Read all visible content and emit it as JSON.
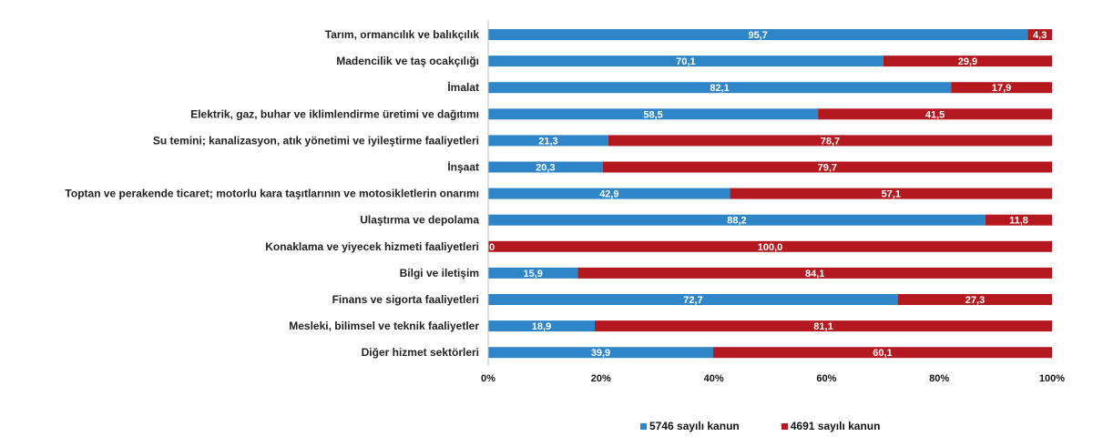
{
  "chart_data": {
    "type": "bar",
    "orientation": "horizontal",
    "stacked": true,
    "categories": [
      "Tarım, ormancılık ve balıkçılık",
      "Madencilik ve taş ocakçılığı",
      "İmalat",
      "Elektrik, gaz, buhar ve iklimlendirme üretimi ve dağıtımı",
      "Su temini; kanalizasyon, atık yönetimi ve iyileştirme faaliyetleri",
      "İnşaat",
      "Toptan ve perakende ticaret; motorlu kara taşıtlarının ve motosikletlerin onarımı",
      "Ulaştırma ve depolama",
      "Konaklama ve yiyecek hizmeti faaliyetleri",
      "Bilgi ve iletişim",
      "Finans ve sigorta faaliyetleri",
      "Mesleki, bilimsel ve teknik faaliyetler",
      "Diğer hizmet sektörleri"
    ],
    "series": [
      {
        "name": "5746 sayılı kanun",
        "color": "#2e86c8",
        "values": [
          95.7,
          70.1,
          82.1,
          58.5,
          21.3,
          20.3,
          42.9,
          88.2,
          0,
          15.9,
          72.7,
          18.9,
          39.9
        ],
        "labels": [
          "95,7",
          "70,1",
          "82,1",
          "58,5",
          "21,3",
          "20,3",
          "42,9",
          "88,2",
          "0",
          "15,9",
          "72,7",
          "18,9",
          "39,9"
        ]
      },
      {
        "name": "4691 sayılı kanun",
        "color": "#b3191f",
        "values": [
          4.3,
          29.9,
          17.9,
          41.5,
          78.7,
          79.7,
          57.1,
          11.8,
          100.0,
          84.1,
          27.3,
          81.1,
          60.1
        ],
        "labels": [
          "4,3",
          "29,9",
          "17,9",
          "41,5",
          "78,7",
          "79,7",
          "57,1",
          "11,8",
          "100,0",
          "84,1",
          "27,3",
          "81,1",
          "60,1"
        ]
      }
    ],
    "xlim": [
      0,
      100
    ],
    "xticks": [
      0,
      20,
      40,
      60,
      80,
      100
    ],
    "xtick_labels": [
      "0%",
      "20%",
      "40%",
      "60%",
      "80%",
      "100%"
    ],
    "grid": false,
    "legend_position": "bottom-right"
  }
}
